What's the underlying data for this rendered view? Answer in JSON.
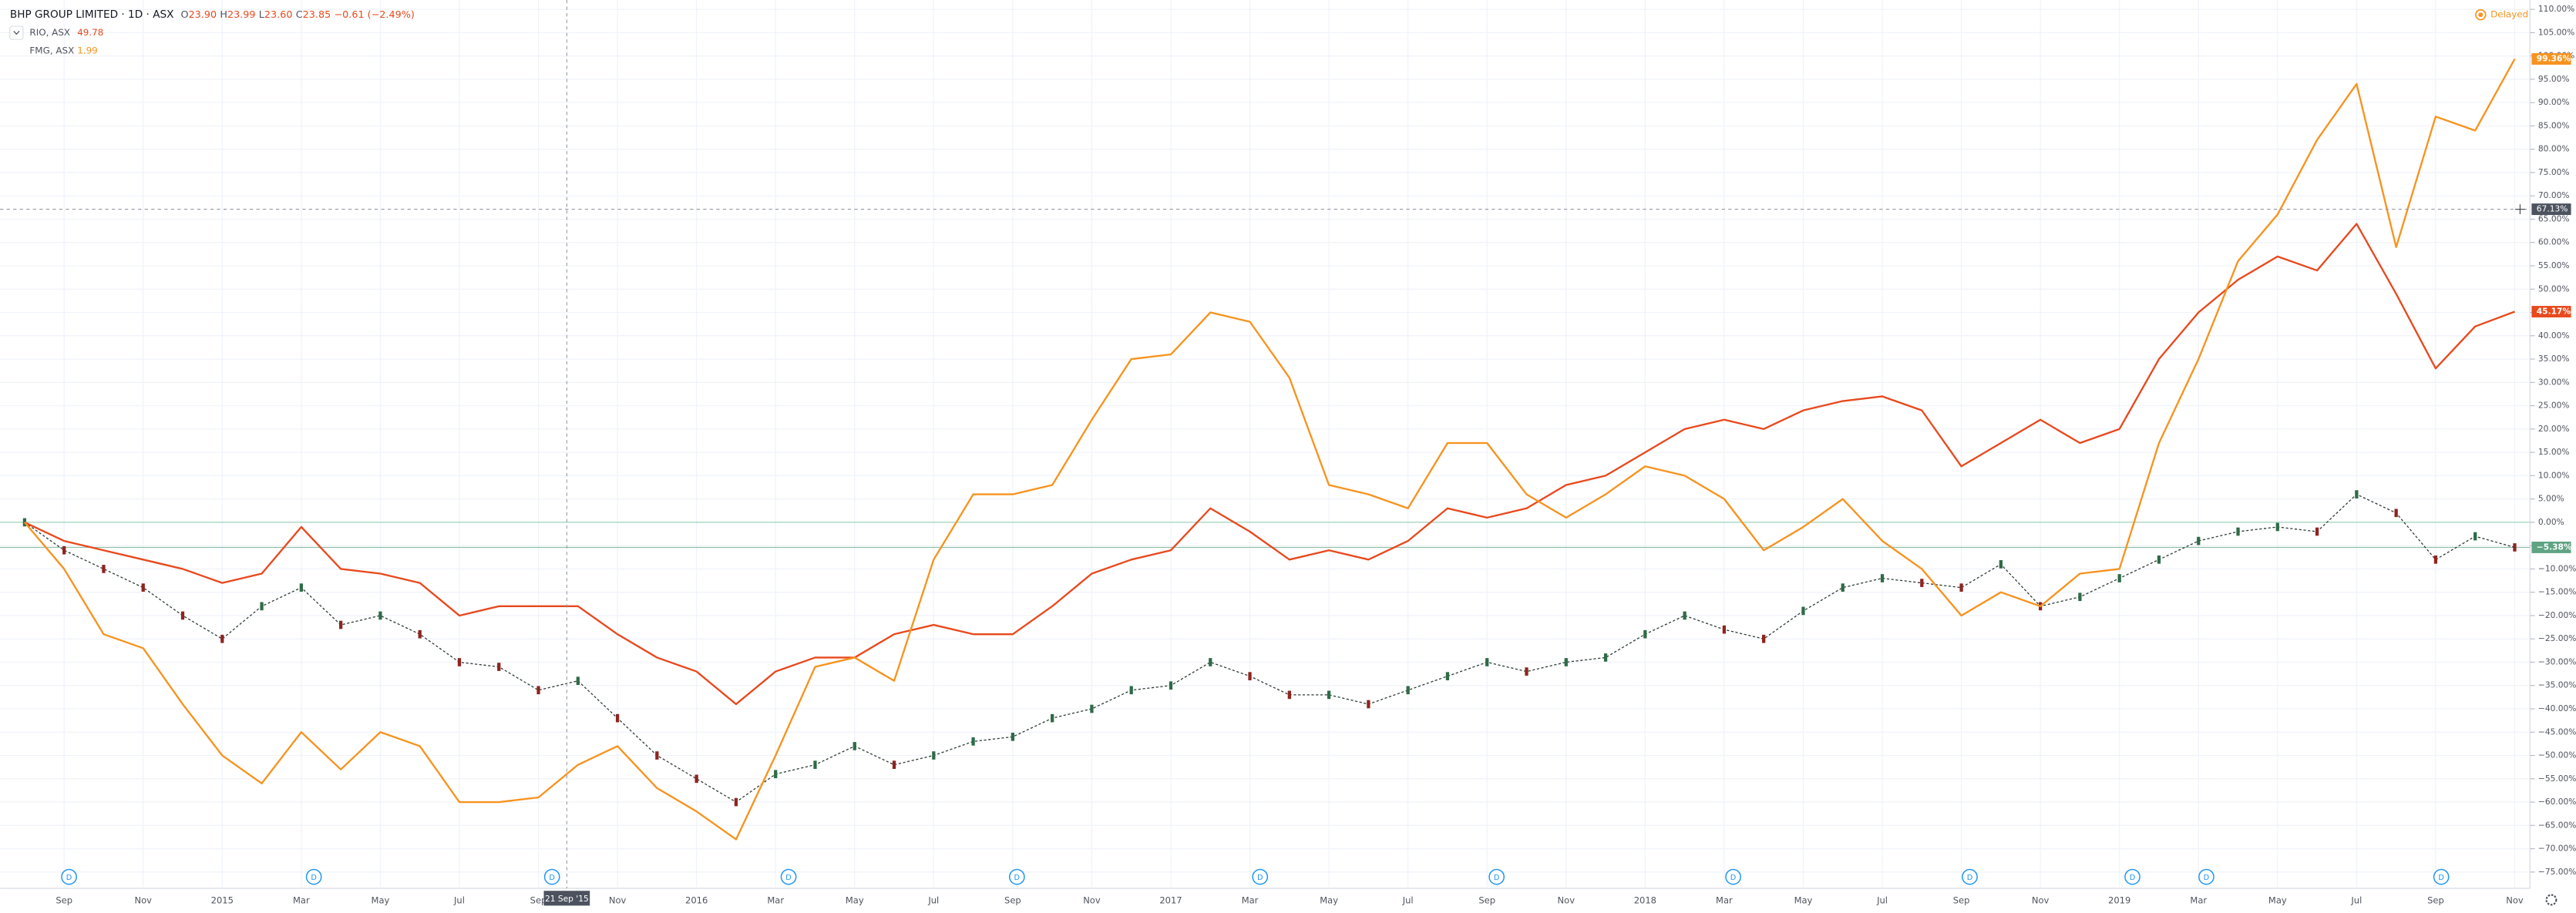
{
  "header": {
    "title": "BHP GROUP LIMITED · 1D · ASX",
    "ohlc": [
      {
        "key": "O",
        "value": "23.90"
      },
      {
        "key": "H",
        "value": "23.99"
      },
      {
        "key": "L",
        "value": "23.60"
      },
      {
        "key": "C",
        "value": "23.85"
      }
    ],
    "change": "−0.61 (−2.49%)",
    "status": "Delayed"
  },
  "legend": [
    {
      "name": "RIO, ASX",
      "value": "49.78"
    },
    {
      "name": "FMG, ASX",
      "value": "1.99"
    }
  ],
  "chart_data": {
    "type": "line",
    "categories": [
      null,
      "Sep",
      null,
      "Nov",
      null,
      "2015",
      null,
      "Mar",
      null,
      "May",
      null,
      "Jul",
      null,
      "Sep",
      null,
      "Nov",
      null,
      "2016",
      null,
      "Mar",
      null,
      "May",
      null,
      "Jul",
      null,
      "Sep",
      null,
      "Nov",
      null,
      "2017",
      null,
      "Mar",
      null,
      "May",
      null,
      "Jul",
      null,
      "Sep",
      null,
      "Nov",
      null,
      "2018",
      null,
      "Mar",
      null,
      "May",
      null,
      "Jul",
      null,
      "Sep",
      null,
      "Nov",
      null,
      "2019",
      null,
      "Mar",
      null,
      "May",
      null,
      "Jul",
      null,
      "Sep",
      null,
      "Nov"
    ],
    "series": [
      {
        "name": "BHP",
        "style": "candle",
        "color": "#2b3a33",
        "up_color": "#2e6b47",
        "down_color": "#8e2420",
        "label_color": "#5fa383",
        "last_label": "−5.38%",
        "values": [
          0,
          -6,
          -10,
          -14,
          -20,
          -25,
          -18,
          -14,
          -22,
          -20,
          -24,
          -30,
          -31,
          -36,
          -34,
          -42,
          -50,
          -55,
          -60,
          -54,
          -52,
          -48,
          -52,
          -50,
          -47,
          -46,
          -42,
          -40,
          -36,
          -35,
          -30,
          -33,
          -37,
          -37,
          -39,
          -36,
          -33,
          -30,
          -32,
          -30,
          -29,
          -24,
          -20,
          -23,
          -25,
          -19,
          -14,
          -12,
          -13,
          -14,
          -9,
          -18,
          -16,
          -12,
          -8,
          -4,
          -2,
          -1,
          -2,
          6,
          2,
          -8,
          -3,
          -5.38
        ]
      },
      {
        "name": "RIO",
        "style": "line",
        "color": "#e8491d",
        "last_label": "45.17%",
        "values": [
          0,
          -4,
          -6,
          -8,
          -10,
          -13,
          -11,
          -1,
          -10,
          -11,
          -13,
          -20,
          -18,
          -18,
          -18,
          -24,
          -29,
          -32,
          -39,
          -32,
          -29,
          -29,
          -24,
          -22,
          -24,
          -24,
          -18,
          -11,
          -8,
          -6,
          3,
          -2,
          -8,
          -6,
          -8,
          -4,
          3,
          1,
          3,
          8,
          10,
          15,
          20,
          22,
          20,
          24,
          26,
          27,
          24,
          12,
          17,
          22,
          17,
          20,
          35,
          45,
          52,
          57,
          54,
          64,
          49,
          33,
          42,
          45.17
        ]
      },
      {
        "name": "FMG",
        "style": "line",
        "color": "#f7931e",
        "last_label": "99.36%",
        "values": [
          0,
          -10,
          -24,
          -27,
          -39,
          -50,
          -56,
          -45,
          -53,
          -45,
          -48,
          -60,
          -60,
          -59,
          -52,
          -48,
          -57,
          -62,
          -68,
          -50,
          -31,
          -29,
          -34,
          -8,
          6,
          6,
          8,
          22,
          35,
          36,
          45,
          43,
          31,
          8,
          6,
          3,
          17,
          17,
          6,
          1,
          6,
          12,
          10,
          5,
          -6,
          -1,
          5,
          -4,
          -10,
          -20,
          -15,
          -18,
          -11,
          -10,
          17,
          35,
          56,
          66,
          82,
          94,
          59,
          87,
          84,
          99.36
        ]
      }
    ],
    "ylim": [
      -78.5,
      112
    ],
    "yticks": [
      {
        "value": 110,
        "label": "110.00%"
      },
      {
        "value": 105,
        "label": "105.00%"
      },
      {
        "value": 100,
        "label": "100.00%"
      },
      {
        "value": 95,
        "label": "95.00%"
      },
      {
        "value": 90,
        "label": "90.00%"
      },
      {
        "value": 85,
        "label": "85.00%"
      },
      {
        "value": 80,
        "label": "80.00%"
      },
      {
        "value": 75,
        "label": "75.00%"
      },
      {
        "value": 70,
        "label": "70.00%"
      },
      {
        "value": 65,
        "label": "65.00%"
      },
      {
        "value": 60,
        "label": "60.00%"
      },
      {
        "value": 55,
        "label": "55.00%"
      },
      {
        "value": 50,
        "label": "50.00%"
      },
      {
        "value": 45,
        "label": "45.00%"
      },
      {
        "value": 40,
        "label": "40.00%"
      },
      {
        "value": 35,
        "label": "35.00%"
      },
      {
        "value": 30,
        "label": "30.00%"
      },
      {
        "value": 25,
        "label": "25.00%"
      },
      {
        "value": 20,
        "label": "20.00%"
      },
      {
        "value": 15,
        "label": "15.00%"
      },
      {
        "value": 10,
        "label": "10.00%"
      },
      {
        "value": 5,
        "label": "5.00%"
      },
      {
        "value": 0,
        "label": "0.00%"
      },
      {
        "value": -5,
        "label": "−5.00%"
      },
      {
        "value": -10,
        "label": "−10.00%"
      },
      {
        "value": -15,
        "label": "−15.00%"
      },
      {
        "value": -20,
        "label": "−20.00%"
      },
      {
        "value": -25,
        "label": "−25.00%"
      },
      {
        "value": -30,
        "label": "−30.00%"
      },
      {
        "value": -35,
        "label": "−35.00%"
      },
      {
        "value": -40,
        "label": "−40.00%"
      },
      {
        "value": -45,
        "label": "−45.00%"
      },
      {
        "value": -50,
        "label": "−50.00%"
      },
      {
        "value": -55,
        "label": "−55.00%"
      },
      {
        "value": -60,
        "label": "−60.00%"
      },
      {
        "value": -65,
        "label": "−65.00%"
      },
      {
        "value": -70,
        "label": "−70.00%"
      },
      {
        "value": -75,
        "label": "−75.00%"
      }
    ],
    "grid": true,
    "crosshair": {
      "x_label": "21 Sep '15",
      "y": {
        "value": 67.13,
        "label": "67.13%"
      }
    },
    "dividend_markers": [
      "D",
      "D",
      "D",
      "D",
      "D",
      "D",
      "D",
      "D",
      "D",
      "D",
      "D",
      "D"
    ]
  }
}
